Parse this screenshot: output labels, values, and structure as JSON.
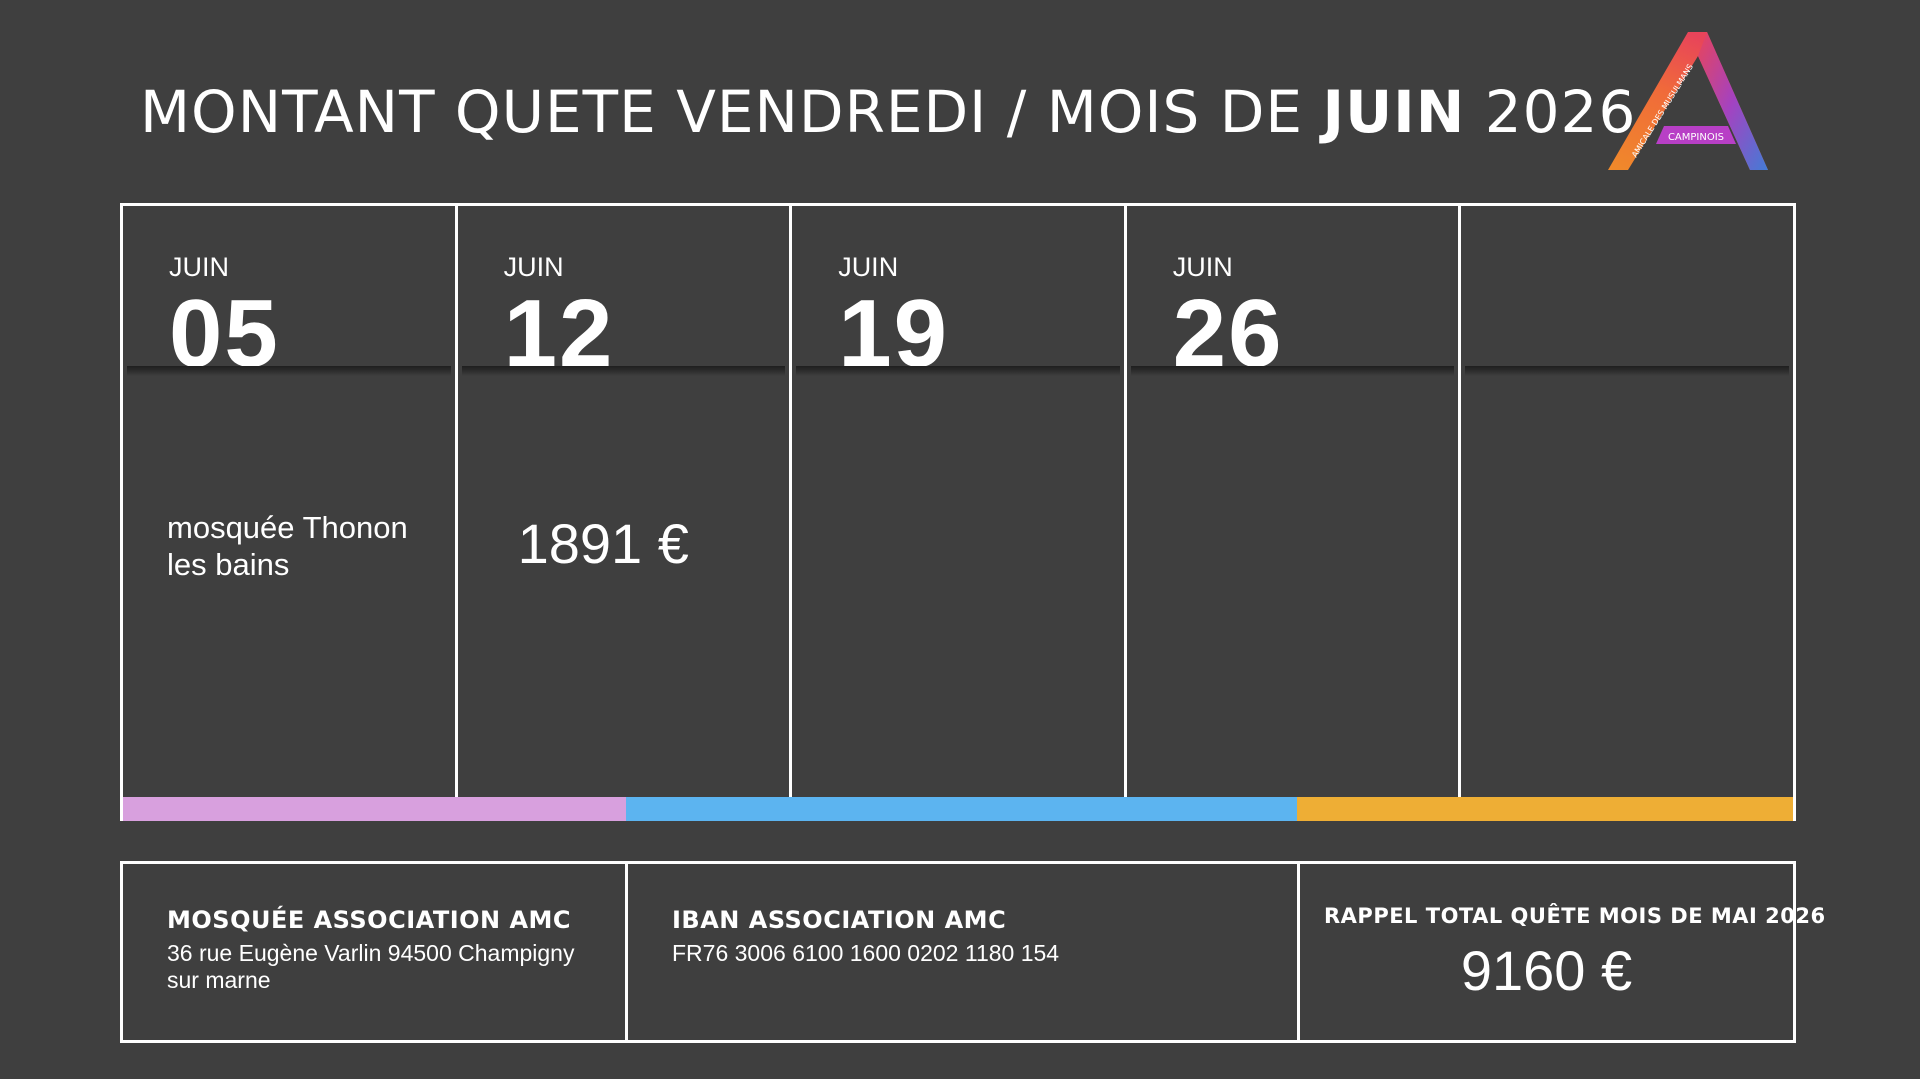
{
  "title": {
    "main": "MONTANT QUETE VENDREDI / MOIS DE ",
    "month": "JUIN",
    "year": " 2026"
  },
  "logo": {
    "text_arc": "AMICALE DES MUSULMANS",
    "text_band": "CAMPINOIS"
  },
  "days": [
    {
      "month": "JUIN",
      "day": "05",
      "note": "mosquée Thonon les bains",
      "amount": ""
    },
    {
      "month": "JUIN",
      "day": "12",
      "note": "",
      "amount": "1891 €"
    },
    {
      "month": "JUIN",
      "day": "19",
      "note": "",
      "amount": ""
    },
    {
      "month": "JUIN",
      "day": "26",
      "note": "",
      "amount": ""
    },
    {
      "month": "",
      "day": "",
      "note": "",
      "amount": ""
    }
  ],
  "colors": {
    "background": "#3f3f3f",
    "pink": "#d8a0de",
    "blue": "#5cb4f0",
    "orange": "#eeae35"
  },
  "footer": {
    "mosque": {
      "heading": "MOSQUÉE ASSOCIATION AMC",
      "address": "36 rue Eugène Varlin 94500 Champigny sur marne"
    },
    "iban": {
      "heading": "IBAN ASSOCIATION AMC",
      "value": "FR76 3006 6100 1600 0202 1180 154"
    },
    "recall": {
      "heading": "RAPPEL TOTAL QUÊTE MOIS DE MAI 2026",
      "value": "9160  €"
    }
  }
}
